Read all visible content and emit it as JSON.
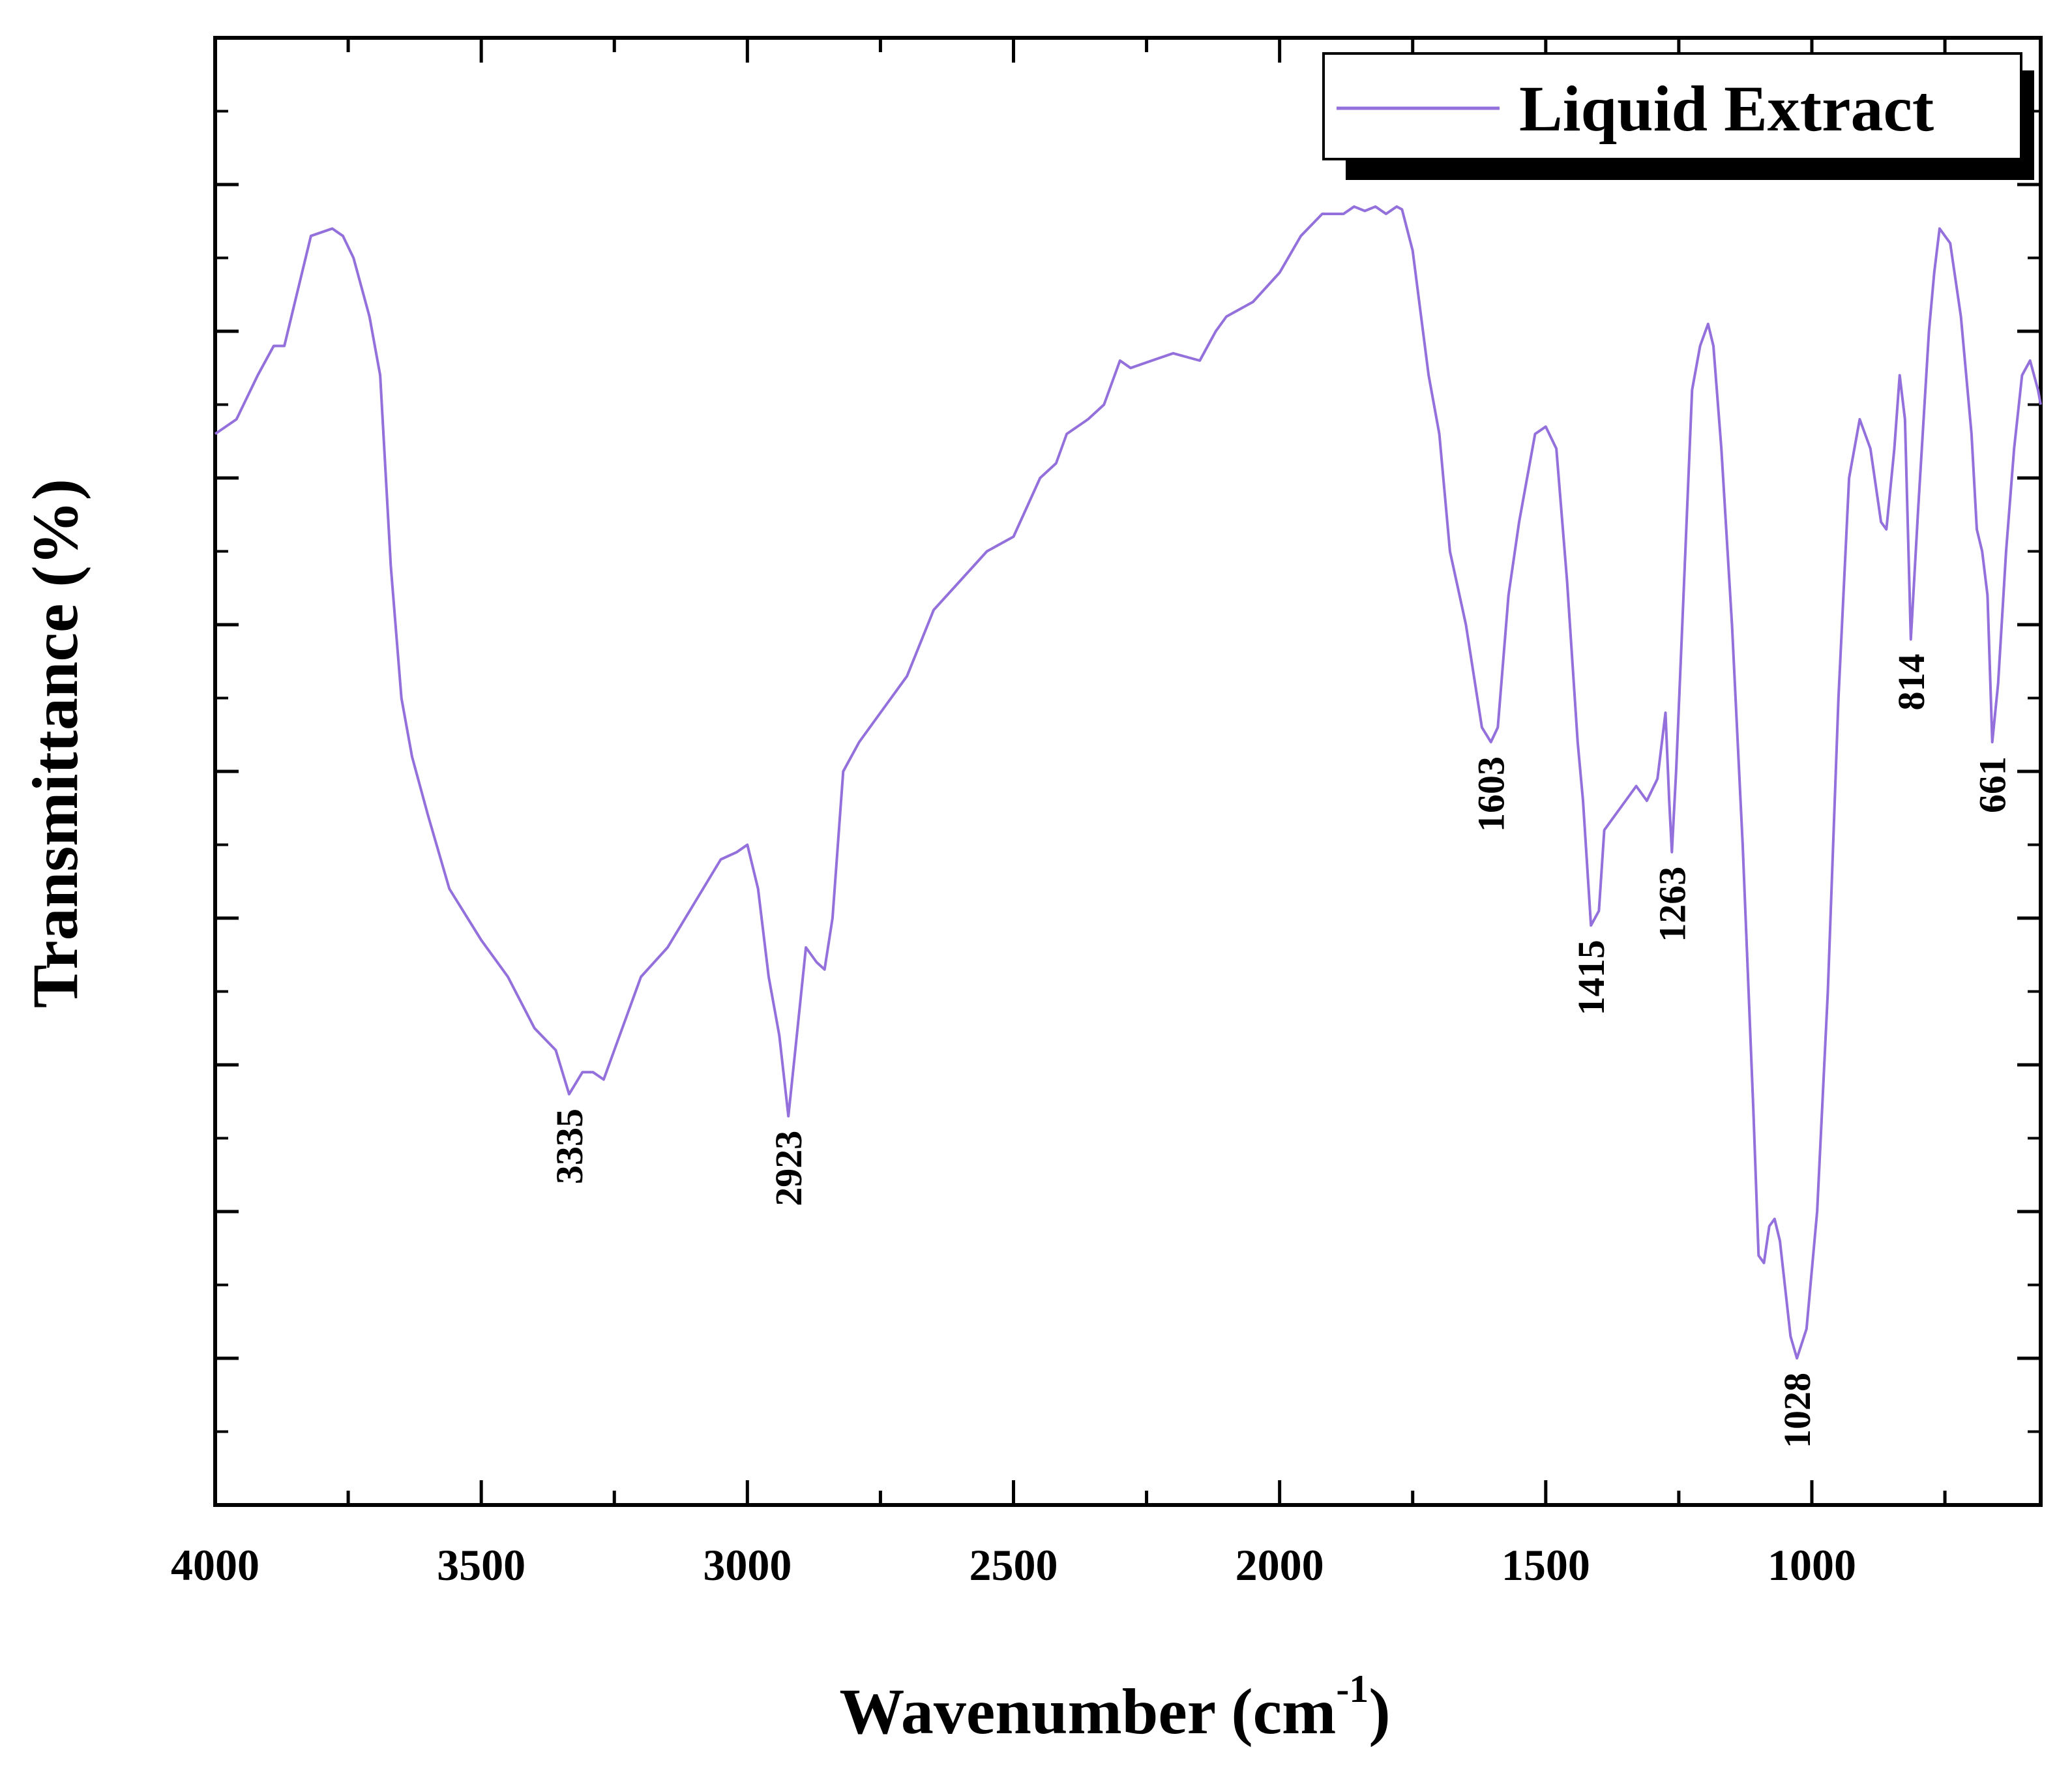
{
  "chart_data": {
    "type": "line",
    "title": "",
    "xlabel": "Wavenumber (cm",
    "xlabel_sup": "-1",
    "xlabel_close": ")",
    "ylabel": "Transmittance (%)",
    "xlim": [
      4000,
      570
    ],
    "ylim": [
      0,
      100
    ],
    "x_ticks": [
      4000,
      3500,
      3000,
      2500,
      2000,
      1500,
      1000
    ],
    "y_tick_count": 11,
    "y_ticks_labeled": false,
    "legend": {
      "position": "top-right",
      "entries": [
        "Liquid Extract"
      ]
    },
    "line_color": "#9370DB",
    "series": [
      {
        "name": "Liquid Extract",
        "points": [
          [
            4000,
            73
          ],
          [
            3960,
            74
          ],
          [
            3920,
            77
          ],
          [
            3890,
            79
          ],
          [
            3870,
            79
          ],
          [
            3850,
            82
          ],
          [
            3820,
            86.5
          ],
          [
            3780,
            87
          ],
          [
            3760,
            86.5
          ],
          [
            3740,
            85
          ],
          [
            3710,
            81
          ],
          [
            3690,
            77
          ],
          [
            3670,
            64
          ],
          [
            3650,
            55
          ],
          [
            3630,
            51
          ],
          [
            3600,
            47
          ],
          [
            3560,
            42
          ],
          [
            3500,
            38.5
          ],
          [
            3450,
            36
          ],
          [
            3400,
            32.5
          ],
          [
            3360,
            31
          ],
          [
            3335,
            28
          ],
          [
            3310,
            29.5
          ],
          [
            3290,
            29.5
          ],
          [
            3270,
            29
          ],
          [
            3250,
            31
          ],
          [
            3200,
            36
          ],
          [
            3150,
            38
          ],
          [
            3100,
            41
          ],
          [
            3050,
            44
          ],
          [
            3020,
            44.5
          ],
          [
            3000,
            45
          ],
          [
            2980,
            42
          ],
          [
            2960,
            36
          ],
          [
            2940,
            32
          ],
          [
            2923,
            26.5
          ],
          [
            2910,
            31
          ],
          [
            2890,
            38
          ],
          [
            2870,
            37
          ],
          [
            2855,
            36.5
          ],
          [
            2840,
            40
          ],
          [
            2820,
            50
          ],
          [
            2790,
            52
          ],
          [
            2750,
            54
          ],
          [
            2700,
            56.5
          ],
          [
            2650,
            61
          ],
          [
            2600,
            63
          ],
          [
            2550,
            65
          ],
          [
            2500,
            66
          ],
          [
            2450,
            70
          ],
          [
            2420,
            71
          ],
          [
            2400,
            73
          ],
          [
            2360,
            74
          ],
          [
            2330,
            75
          ],
          [
            2300,
            78
          ],
          [
            2280,
            77.5
          ],
          [
            2240,
            78
          ],
          [
            2200,
            78.5
          ],
          [
            2150,
            78
          ],
          [
            2120,
            80
          ],
          [
            2100,
            81
          ],
          [
            2050,
            82
          ],
          [
            2000,
            84
          ],
          [
            1960,
            86.5
          ],
          [
            1920,
            88
          ],
          [
            1900,
            88
          ],
          [
            1880,
            88
          ],
          [
            1860,
            88.5
          ],
          [
            1840,
            88.2
          ],
          [
            1820,
            88.5
          ],
          [
            1800,
            88
          ],
          [
            1780,
            88.5
          ],
          [
            1770,
            88.3
          ],
          [
            1750,
            85.5
          ],
          [
            1720,
            77
          ],
          [
            1700,
            73
          ],
          [
            1680,
            65
          ],
          [
            1650,
            60
          ],
          [
            1620,
            53
          ],
          [
            1603,
            52
          ],
          [
            1590,
            53
          ],
          [
            1570,
            62
          ],
          [
            1550,
            67
          ],
          [
            1520,
            73
          ],
          [
            1500,
            73.5
          ],
          [
            1480,
            72
          ],
          [
            1460,
            63
          ],
          [
            1440,
            52
          ],
          [
            1430,
            48
          ],
          [
            1415,
            39.5
          ],
          [
            1400,
            40.5
          ],
          [
            1390,
            46
          ],
          [
            1370,
            47
          ],
          [
            1350,
            48
          ],
          [
            1330,
            49
          ],
          [
            1310,
            48
          ],
          [
            1290,
            49.5
          ],
          [
            1275,
            54
          ],
          [
            1268,
            48
          ],
          [
            1263,
            44.5
          ],
          [
            1255,
            50
          ],
          [
            1240,
            63
          ],
          [
            1225,
            76
          ],
          [
            1210,
            79
          ],
          [
            1195,
            80.5
          ],
          [
            1185,
            79
          ],
          [
            1170,
            72
          ],
          [
            1150,
            60
          ],
          [
            1130,
            45
          ],
          [
            1110,
            27
          ],
          [
            1100,
            17
          ],
          [
            1090,
            16.5
          ],
          [
            1080,
            19
          ],
          [
            1070,
            19.5
          ],
          [
            1060,
            18
          ],
          [
            1040,
            11.5
          ],
          [
            1028,
            10
          ],
          [
            1010,
            12
          ],
          [
            990,
            20
          ],
          [
            970,
            35
          ],
          [
            950,
            55
          ],
          [
            930,
            70
          ],
          [
            910,
            74
          ],
          [
            890,
            72
          ],
          [
            870,
            67
          ],
          [
            860,
            66.5
          ],
          [
            845,
            72
          ],
          [
            835,
            77
          ],
          [
            825,
            74
          ],
          [
            814,
            59
          ],
          [
            800,
            68
          ],
          [
            780,
            80
          ],
          [
            770,
            84
          ],
          [
            760,
            87
          ],
          [
            740,
            86
          ],
          [
            720,
            81
          ],
          [
            700,
            73
          ],
          [
            690,
            66.5
          ],
          [
            680,
            65
          ],
          [
            670,
            62
          ],
          [
            661,
            52
          ],
          [
            650,
            56
          ],
          [
            635,
            65
          ],
          [
            620,
            72
          ],
          [
            605,
            77
          ],
          [
            590,
            78
          ],
          [
            575,
            76
          ],
          [
            570,
            75
          ]
        ]
      }
    ],
    "annotations": [
      {
        "label": "3335",
        "x": 3335
      },
      {
        "label": "2923",
        "x": 2923
      },
      {
        "label": "1603",
        "x": 1603
      },
      {
        "label": "1415",
        "x": 1415
      },
      {
        "label": "1263",
        "x": 1263
      },
      {
        "label": "1028",
        "x": 1028
      },
      {
        "label": "814",
        "x": 814
      },
      {
        "label": "661",
        "x": 661
      }
    ]
  }
}
